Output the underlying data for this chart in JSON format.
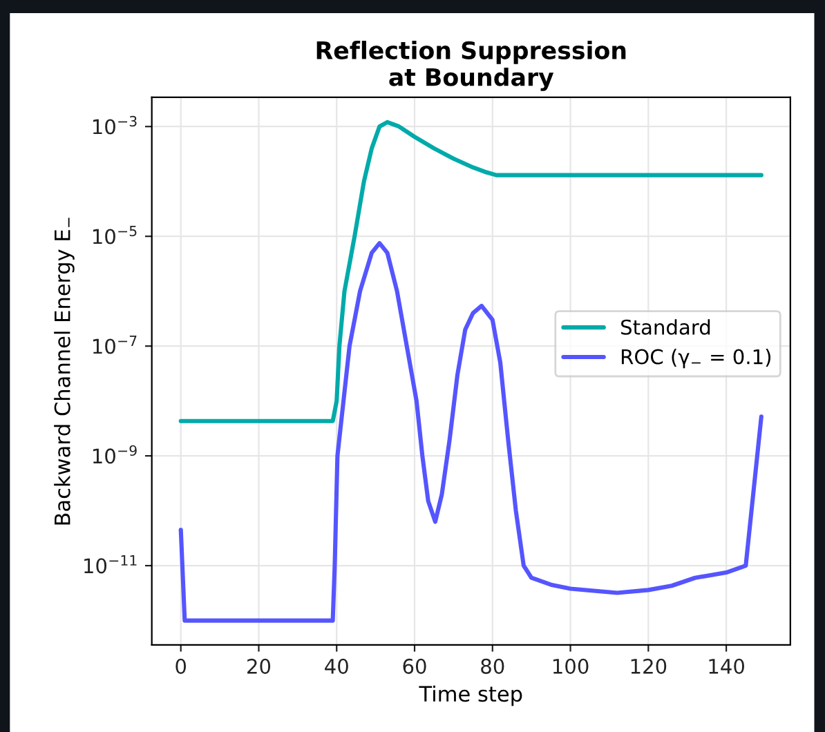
{
  "chart_data": {
    "type": "line",
    "title": "Reflection Suppression\nat Boundary",
    "xlabel": "Time step",
    "ylabel": "Backward Channel Energy E$_{−}$",
    "log": "y",
    "grid": true,
    "legend": "right",
    "line_style": "solid",
    "xlim": [
      -7.45,
      156.45
    ],
    "xticks": [
      0,
      20,
      40,
      60,
      80,
      100,
      120,
      140
    ],
    "ylim": [
      3.6e-13,
      0.0034
    ],
    "yticks": [
      {
        "value": 1e-11,
        "label": "10$^{−11}$"
      },
      {
        "value": 1e-09,
        "label": "10$^{−9}$"
      },
      {
        "value": 1e-07,
        "label": "10$^{−7}$"
      },
      {
        "value": 1e-05,
        "label": "10$^{−5}$"
      },
      {
        "value": 0.001,
        "label": "10$^{−3}$"
      }
    ],
    "series": [
      {
        "name": "Standard",
        "color": "#00aaaa",
        "x": [
          0,
          39,
          40,
          40.7,
          42,
          44.6,
          47,
          49,
          51,
          53,
          56,
          60,
          65,
          70,
          75,
          78,
          81,
          149
        ],
        "values": [
          4.3e-09,
          4.3e-09,
          1e-08,
          1e-07,
          1e-06,
          1e-05,
          0.0001,
          0.0004,
          0.001,
          0.0012,
          0.001,
          0.00065,
          0.0004,
          0.00026,
          0.00018,
          0.00015,
          0.00013,
          0.00013
        ]
      },
      {
        "name": "ROC (γ$_{−}$ = 0.1)",
        "color": "#5555ff",
        "x": [
          0,
          1,
          39,
          39.5,
          40.2,
          43.3,
          46,
          49,
          51,
          53,
          55.5,
          58,
          60.5,
          62,
          63.5,
          65.3,
          67,
          69,
          71,
          73,
          75,
          77.2,
          80,
          82,
          84,
          86,
          88,
          90,
          95,
          100,
          112,
          120,
          126,
          132,
          140,
          145,
          149
        ],
        "values": [
          4.5e-11,
          1e-12,
          1e-12,
          1e-11,
          1e-09,
          1e-07,
          1e-06,
          5e-06,
          7.5e-06,
          5e-06,
          1e-06,
          1e-07,
          1e-08,
          1e-09,
          1.5e-10,
          6.3e-11,
          2e-10,
          2e-09,
          3e-08,
          2e-07,
          4e-07,
          5.4e-07,
          3e-07,
          5e-08,
          2e-09,
          1e-10,
          1e-11,
          6e-12,
          4.5e-12,
          3.8e-12,
          3.2e-12,
          3.6e-12,
          4.3e-12,
          6e-12,
          7.5e-12,
          1e-11,
          5.2e-09
        ]
      }
    ]
  }
}
